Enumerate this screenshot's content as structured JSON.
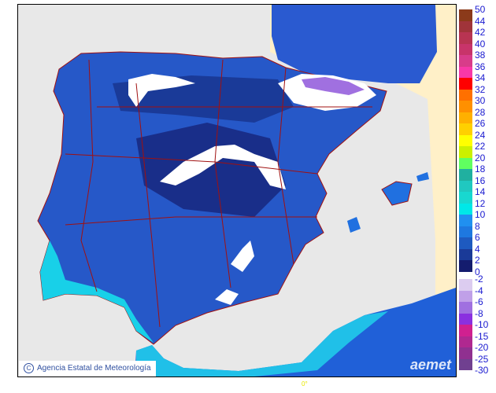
{
  "map": {
    "credit": "Agencia Estatal de Meteorología",
    "copyright_symbol": "C",
    "logo": "aemet",
    "longitude_label": "0°",
    "colors": {
      "sea": "#e8e8e8",
      "land_outside": "#fff0c8",
      "borders": "#a01010",
      "no_data": "#ffffff"
    }
  },
  "legend": {
    "positive_labels": [
      "50",
      "44",
      "42",
      "40",
      "38",
      "36",
      "34",
      "32",
      "30",
      "28",
      "26",
      "24",
      "22",
      "20",
      "18",
      "16",
      "14",
      "12",
      "10",
      "8",
      "6",
      "4",
      "2",
      "0"
    ],
    "positive_colors": [
      "#8b3a1a",
      "#a0343a",
      "#b83452",
      "#c8346a",
      "#d83c8a",
      "#f838a8",
      "#ff0000",
      "#ff7000",
      "#ff9000",
      "#ffb000",
      "#ffd000",
      "#ffff00",
      "#ccf000",
      "#60ff60",
      "#20b0a0",
      "#20c8c0",
      "#18d8d0",
      "#00e8e8",
      "#2090f0",
      "#1e78e0",
      "#1e5ac0",
      "#1a3a98",
      "#141c6e"
    ],
    "negative_labels": [
      "-2",
      "-4",
      "-6",
      "-8",
      "-10",
      "-15",
      "-20",
      "-25",
      "-30"
    ],
    "negative_colors": [
      "#dcccf0",
      "#c0a0e8",
      "#a070e0",
      "#8a30e0",
      "#d02090",
      "#b02890",
      "#903090",
      "#704090"
    ]
  }
}
